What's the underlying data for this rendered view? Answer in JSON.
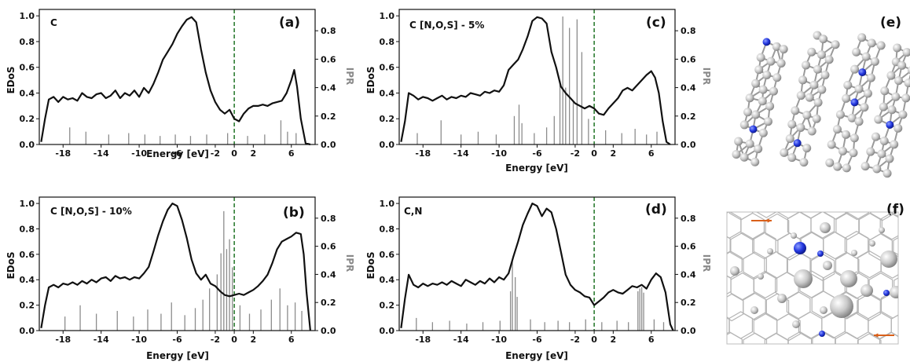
{
  "chart_data": [
    {
      "type": "line",
      "panel": "(a)",
      "system": "C",
      "xlabel": "Energy [eV]",
      "ylabel": "EDoS",
      "y2label": "IPR",
      "xlim": [
        -20.5,
        8.5
      ],
      "ylim": [
        0,
        1.05
      ],
      "y2lim": [
        0,
        0.95
      ],
      "xticks": [
        -18,
        -14,
        -10,
        -6,
        -2,
        0,
        2,
        6
      ],
      "yticks": [
        0.0,
        0.2,
        0.4,
        0.6,
        0.8,
        1.0
      ],
      "y2ticks": [
        0.0,
        0.2,
        0.4,
        0.6,
        0.8
      ],
      "fermi_level": 0,
      "edos": {
        "x": [
          -20.3,
          -19.9,
          -19.5,
          -19.0,
          -18.5,
          -18.0,
          -17.5,
          -17.0,
          -16.5,
          -16.0,
          -15.5,
          -15.0,
          -14.5,
          -14.0,
          -13.5,
          -13.0,
          -12.5,
          -12.0,
          -11.5,
          -11.0,
          -10.5,
          -10.0,
          -9.5,
          -9.0,
          -8.5,
          -8.0,
          -7.5,
          -7.0,
          -6.5,
          -6.0,
          -5.5,
          -5.0,
          -4.5,
          -4.0,
          -3.5,
          -3.0,
          -2.5,
          -2.0,
          -1.5,
          -1.0,
          -0.5,
          0.0,
          0.5,
          1.0,
          1.5,
          2.0,
          2.5,
          3.0,
          3.5,
          4.0,
          4.5,
          5.0,
          5.5,
          6.0,
          6.3,
          6.6,
          7.0,
          7.5,
          8.0
        ],
        "y": [
          0.02,
          0.2,
          0.35,
          0.37,
          0.33,
          0.37,
          0.35,
          0.36,
          0.34,
          0.4,
          0.37,
          0.36,
          0.39,
          0.4,
          0.36,
          0.38,
          0.42,
          0.36,
          0.4,
          0.38,
          0.42,
          0.37,
          0.44,
          0.4,
          0.47,
          0.56,
          0.66,
          0.72,
          0.78,
          0.86,
          0.92,
          0.97,
          0.99,
          0.95,
          0.74,
          0.56,
          0.42,
          0.33,
          0.27,
          0.24,
          0.27,
          0.2,
          0.18,
          0.24,
          0.28,
          0.3,
          0.3,
          0.31,
          0.3,
          0.32,
          0.33,
          0.34,
          0.4,
          0.5,
          0.58,
          0.45,
          0.2,
          0.01,
          0.0
        ]
      },
      "ipr": {
        "x": [
          -17.3,
          -15.6,
          -13.2,
          -11.1,
          -9.4,
          -7.8,
          -6.2,
          -4.6,
          -2.9,
          -0.7,
          1.4,
          3.2,
          4.9,
          5.6,
          6.5
        ],
        "y": [
          0.12,
          0.09,
          0.07,
          0.08,
          0.07,
          0.06,
          0.07,
          0.06,
          0.07,
          0.08,
          0.06,
          0.07,
          0.17,
          0.09,
          0.08
        ]
      }
    },
    {
      "type": "line",
      "panel": "(b)",
      "system": "C [N,O,S] - 10%",
      "xlabel": "Energy [eV]",
      "ylabel": "EDoS",
      "y2label": "IPR",
      "xlim": [
        -20.5,
        8.5
      ],
      "ylim": [
        0,
        1.05
      ],
      "y2lim": [
        0,
        0.95
      ],
      "xticks": [
        -18,
        -14,
        -10,
        -6,
        -2,
        0,
        2,
        6
      ],
      "yticks": [
        0.0,
        0.2,
        0.4,
        0.6,
        0.8,
        1.0
      ],
      "y2ticks": [
        0.0,
        0.2,
        0.4,
        0.6,
        0.8
      ],
      "fermi_level": 0,
      "edos": {
        "x": [
          -20.3,
          -19.9,
          -19.5,
          -19.0,
          -18.5,
          -18.0,
          -17.5,
          -17.0,
          -16.5,
          -16.0,
          -15.5,
          -15.0,
          -14.5,
          -14.0,
          -13.5,
          -13.0,
          -12.5,
          -12.0,
          -11.5,
          -11.0,
          -10.5,
          -10.0,
          -9.5,
          -9.0,
          -8.5,
          -8.0,
          -7.5,
          -7.0,
          -6.5,
          -6.0,
          -5.5,
          -5.0,
          -4.5,
          -4.0,
          -3.5,
          -3.0,
          -2.5,
          -2.0,
          -1.5,
          -1.0,
          -0.5,
          0.0,
          0.5,
          1.0,
          1.5,
          2.0,
          2.5,
          3.0,
          3.5,
          4.0,
          4.5,
          5.0,
          5.5,
          6.0,
          6.5,
          7.0,
          7.3,
          7.6,
          8.0
        ],
        "y": [
          0.02,
          0.2,
          0.34,
          0.36,
          0.34,
          0.37,
          0.36,
          0.38,
          0.36,
          0.39,
          0.37,
          0.4,
          0.38,
          0.41,
          0.42,
          0.39,
          0.43,
          0.41,
          0.42,
          0.4,
          0.42,
          0.41,
          0.45,
          0.5,
          0.62,
          0.75,
          0.86,
          0.95,
          1.0,
          0.98,
          0.87,
          0.73,
          0.56,
          0.45,
          0.4,
          0.44,
          0.37,
          0.35,
          0.31,
          0.28,
          0.27,
          0.28,
          0.29,
          0.28,
          0.3,
          0.32,
          0.35,
          0.39,
          0.44,
          0.53,
          0.64,
          0.7,
          0.72,
          0.74,
          0.77,
          0.76,
          0.6,
          0.3,
          0.0
        ]
      },
      "ipr": {
        "x": [
          -17.8,
          -16.2,
          -14.5,
          -12.3,
          -10.6,
          -9.1,
          -7.7,
          -6.6,
          -5.2,
          -4.1,
          -3.3,
          -2.6,
          -1.8,
          -1.4,
          -1.1,
          -0.8,
          -0.5,
          -0.2,
          0.6,
          1.6,
          2.8,
          3.9,
          4.8,
          5.6,
          6.4,
          7.1
        ],
        "y": [
          0.1,
          0.18,
          0.12,
          0.14,
          0.1,
          0.15,
          0.12,
          0.2,
          0.11,
          0.16,
          0.22,
          0.3,
          0.4,
          0.55,
          0.85,
          0.58,
          0.65,
          0.45,
          0.18,
          0.12,
          0.15,
          0.22,
          0.3,
          0.18,
          0.2,
          0.14
        ]
      }
    },
    {
      "type": "line",
      "panel": "(c)",
      "system": "C [N,O,S] - 5%",
      "xlabel": "Energy [eV]",
      "ylabel": "EDoS",
      "y2label": "IPR",
      "xlim": [
        -20.5,
        8.5
      ],
      "ylim": [
        0,
        1.05
      ],
      "y2lim": [
        0,
        0.95
      ],
      "xticks": [
        -18,
        -14,
        -10,
        -6,
        -2,
        0,
        2,
        6
      ],
      "yticks": [
        0.0,
        0.2,
        0.4,
        0.6,
        0.8,
        1.0
      ],
      "y2ticks": [
        0.0,
        0.2,
        0.4,
        0.6,
        0.8
      ],
      "fermi_level": 0,
      "edos": {
        "x": [
          -20.3,
          -19.9,
          -19.5,
          -19.0,
          -18.5,
          -18.0,
          -17.5,
          -17.0,
          -16.5,
          -16.0,
          -15.5,
          -15.0,
          -14.5,
          -14.0,
          -13.5,
          -13.0,
          -12.5,
          -12.0,
          -11.5,
          -11.0,
          -10.5,
          -10.0,
          -9.5,
          -9.0,
          -8.5,
          -8.0,
          -7.5,
          -7.0,
          -6.5,
          -6.0,
          -5.5,
          -5.0,
          -4.5,
          -4.0,
          -3.5,
          -3.0,
          -2.5,
          -2.0,
          -1.5,
          -1.0,
          -0.5,
          0.0,
          0.5,
          1.0,
          1.5,
          2.0,
          2.5,
          3.0,
          3.5,
          4.0,
          4.5,
          5.0,
          5.5,
          6.0,
          6.4,
          6.8,
          7.2,
          7.6,
          8.0
        ],
        "y": [
          0.02,
          0.18,
          0.4,
          0.38,
          0.35,
          0.37,
          0.36,
          0.34,
          0.36,
          0.38,
          0.35,
          0.37,
          0.36,
          0.38,
          0.37,
          0.4,
          0.39,
          0.38,
          0.41,
          0.4,
          0.42,
          0.41,
          0.46,
          0.58,
          0.62,
          0.66,
          0.74,
          0.84,
          0.96,
          0.99,
          0.98,
          0.94,
          0.72,
          0.6,
          0.45,
          0.4,
          0.36,
          0.32,
          0.3,
          0.28,
          0.3,
          0.28,
          0.24,
          0.23,
          0.28,
          0.32,
          0.36,
          0.42,
          0.44,
          0.42,
          0.46,
          0.5,
          0.54,
          0.57,
          0.52,
          0.4,
          0.18,
          0.02,
          0.0
        ]
      },
      "ipr": {
        "x": [
          -18.6,
          -16.1,
          -14.0,
          -12.2,
          -10.3,
          -8.4,
          -7.9,
          -7.6,
          -6.3,
          -5.0,
          -4.2,
          -3.6,
          -3.3,
          -3.0,
          -2.6,
          -2.2,
          -1.8,
          -1.3,
          -0.6,
          1.2,
          2.9,
          4.3,
          5.5,
          6.6
        ],
        "y": [
          0.08,
          0.17,
          0.07,
          0.09,
          0.07,
          0.2,
          0.28,
          0.15,
          0.08,
          0.12,
          0.2,
          0.45,
          0.9,
          0.4,
          0.82,
          0.3,
          0.88,
          0.65,
          0.18,
          0.1,
          0.08,
          0.11,
          0.07,
          0.09
        ]
      }
    },
    {
      "type": "line",
      "panel": "(d)",
      "system": "C,N",
      "xlabel": "Energy [eV]",
      "ylabel": "EDoS",
      "y2label": "IPR",
      "xlim": [
        -20.5,
        8.5
      ],
      "ylim": [
        0,
        1.05
      ],
      "y2lim": [
        0,
        0.95
      ],
      "xticks": [
        -18,
        -14,
        -10,
        -6,
        -2,
        0,
        2,
        6
      ],
      "yticks": [
        0.0,
        0.2,
        0.4,
        0.6,
        0.8,
        1.0
      ],
      "y2ticks": [
        0.0,
        0.2,
        0.4,
        0.6,
        0.8
      ],
      "fermi_level": 0,
      "edos": {
        "x": [
          -20.3,
          -19.9,
          -19.5,
          -19.0,
          -18.5,
          -18.0,
          -17.5,
          -17.0,
          -16.5,
          -16.0,
          -15.5,
          -15.0,
          -14.5,
          -14.0,
          -13.5,
          -13.0,
          -12.5,
          -12.0,
          -11.5,
          -11.0,
          -10.5,
          -10.0,
          -9.5,
          -9.0,
          -8.5,
          -8.0,
          -7.5,
          -7.0,
          -6.5,
          -6.0,
          -5.5,
          -5.0,
          -4.5,
          -4.0,
          -3.5,
          -3.0,
          -2.5,
          -2.0,
          -1.5,
          -1.0,
          -0.5,
          0.0,
          0.5,
          1.0,
          1.5,
          2.0,
          2.5,
          3.0,
          3.5,
          4.0,
          4.5,
          5.0,
          5.5,
          6.0,
          6.5,
          7.0,
          7.5,
          8.0,
          8.3
        ],
        "y": [
          0.02,
          0.25,
          0.44,
          0.36,
          0.34,
          0.37,
          0.35,
          0.37,
          0.36,
          0.38,
          0.36,
          0.39,
          0.37,
          0.35,
          0.4,
          0.38,
          0.36,
          0.39,
          0.37,
          0.41,
          0.38,
          0.42,
          0.4,
          0.45,
          0.58,
          0.7,
          0.83,
          0.92,
          1.0,
          0.98,
          0.9,
          0.96,
          0.93,
          0.8,
          0.62,
          0.44,
          0.36,
          0.32,
          0.3,
          0.27,
          0.26,
          0.2,
          0.23,
          0.26,
          0.3,
          0.32,
          0.3,
          0.29,
          0.32,
          0.35,
          0.34,
          0.36,
          0.33,
          0.4,
          0.45,
          0.42,
          0.3,
          0.05,
          0.0
        ]
      },
      "ipr": {
        "x": [
          -18.7,
          -17.0,
          -15.2,
          -13.4,
          -11.7,
          -9.9,
          -8.8,
          -8.6,
          -8.3,
          -8.1,
          -6.7,
          -5.2,
          -3.8,
          -2.6,
          -0.9,
          0.8,
          2.4,
          3.6,
          4.6,
          4.8,
          5.0,
          5.2,
          6.3,
          7.3
        ],
        "y": [
          0.09,
          0.06,
          0.07,
          0.05,
          0.06,
          0.07,
          0.28,
          0.5,
          0.38,
          0.24,
          0.08,
          0.06,
          0.07,
          0.06,
          0.08,
          0.06,
          0.07,
          0.06,
          0.28,
          0.3,
          0.31,
          0.27,
          0.08,
          0.06
        ]
      }
    }
  ],
  "panels_extra": [
    {
      "label": "(e)"
    },
    {
      "label": "(f)"
    }
  ],
  "colors": {
    "edos_line": "#111111",
    "ipr_bars": "#8c8c8c",
    "fermi_line": "#2e7d32",
    "carbon_atom": "#c4c4c4",
    "dopant_atom": "#1f35d6",
    "arrow": "#d9601a",
    "bond": "#b5b5b5"
  }
}
